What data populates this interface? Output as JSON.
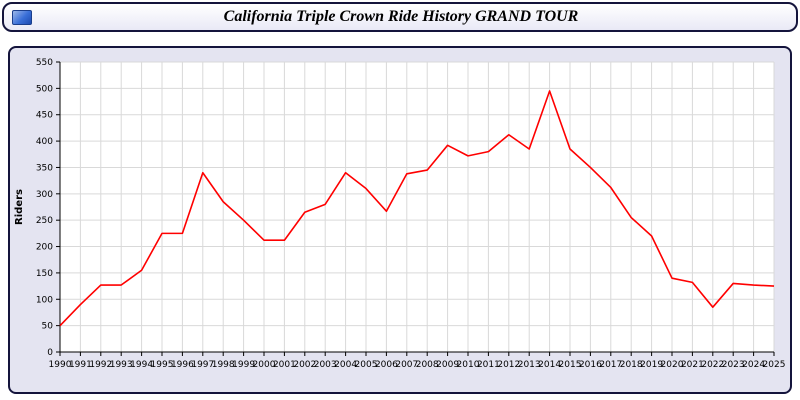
{
  "header": {
    "title": "California Triple Crown Ride History GRAND TOUR",
    "icon": "blue-picture-icon"
  },
  "colors": {
    "line": "#ff0000",
    "grid": "#d9d9d9",
    "axis": "#000000",
    "plot_bg": "#ffffff",
    "panel_bg": "#e4e4f1",
    "border": "#14143c"
  },
  "chart_data": {
    "type": "line",
    "title": "California Triple Crown Ride History GRAND TOUR",
    "xlabel": "",
    "ylabel": "Riders",
    "ylim": [
      0,
      550
    ],
    "ytick_step": 50,
    "grid": true,
    "legend_position": "none",
    "categories": [
      "1990",
      "1991",
      "1992",
      "1993",
      "1994",
      "1995",
      "1996",
      "1997",
      "1998",
      "1999",
      "2000",
      "2001",
      "2002",
      "2003",
      "2004",
      "2005",
      "2006",
      "2007",
      "2008",
      "2009",
      "2010",
      "2011",
      "2012",
      "2013",
      "2014",
      "2015",
      "2016",
      "2017",
      "2018",
      "2019",
      "2020",
      "2021",
      "2022",
      "2023",
      "2024",
      "2025"
    ],
    "series": [
      {
        "name": "Riders",
        "values": [
          50,
          90,
          127,
          127,
          155,
          225,
          225,
          340,
          285,
          250,
          212,
          212,
          265,
          280,
          340,
          310,
          267,
          338,
          345,
          392,
          372,
          380,
          412,
          385,
          495,
          385,
          350,
          312,
          255,
          220,
          140,
          132,
          85,
          130,
          127,
          125
        ]
      }
    ]
  }
}
